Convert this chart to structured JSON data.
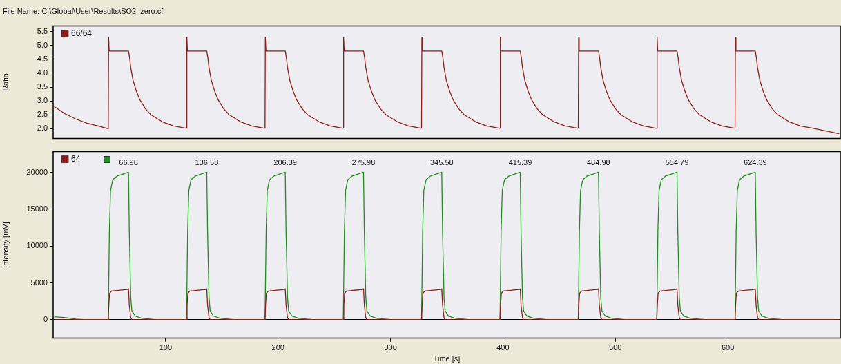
{
  "chart_data": [
    {
      "type": "line",
      "title": "File Name: C:\\Global\\User\\Results\\SO2_zero.cf",
      "ylabel": "Ratio",
      "legend": "top left",
      "marker": "none",
      "tick_labels": "y",
      "grid": false,
      "xlim": [
        0,
        700
      ],
      "ylim": [
        1.65,
        5.7
      ],
      "yticks": [
        {
          "value": 2,
          "label": "2.0"
        },
        {
          "value": 2.5,
          "label": "2.5"
        },
        {
          "value": 3,
          "label": "3.0"
        },
        {
          "value": 3.5,
          "label": "3.5"
        },
        {
          "value": 4,
          "label": "4.0"
        },
        {
          "value": 4.5,
          "label": "4.5"
        },
        {
          "value": 5,
          "label": "5.0"
        },
        {
          "value": 5.5,
          "label": "5.5"
        }
      ],
      "series": [
        {
          "name": "66/64",
          "color": "#8b1c1c",
          "x": [
            1,
            10,
            20,
            30,
            40,
            49,
            49.3,
            49.8,
            67,
            68,
            69,
            71,
            74,
            77,
            82,
            87,
            97,
            107,
            118,
            118.6,
            118.9,
            119.4,
            136.6,
            137.6,
            138.6,
            140.6,
            143.6,
            146.6,
            151.6,
            156.6,
            166.6,
            176.6,
            187.6,
            188.4,
            188.7,
            189.2,
            206.4,
            207.4,
            208.4,
            210.4,
            213.4,
            216.4,
            221.4,
            226.4,
            236.4,
            246.4,
            257.4,
            258,
            258.3,
            258.8,
            276,
            277,
            278,
            280,
            283,
            286,
            291,
            296,
            306,
            316,
            327,
            327.6,
            327.9,
            328.4,
            345.6,
            346.6,
            347.6,
            349.6,
            352.6,
            355.6,
            360.6,
            365.6,
            375.6,
            385.6,
            396.6,
            397.4,
            397.7,
            398.2,
            415.4,
            416.4,
            417.4,
            419.4,
            422.4,
            425.4,
            430.4,
            435.4,
            445.4,
            455.4,
            466.4,
            467,
            467.3,
            467.8,
            485,
            486,
            487,
            489,
            492,
            495,
            500,
            505,
            515,
            525,
            536,
            536.8,
            537.1,
            537.6,
            554.8,
            555.8,
            556.8,
            558.8,
            561.8,
            564.8,
            569.8,
            574.8,
            584.8,
            594.8,
            605.8,
            606.4,
            606.7,
            607.2,
            624.4,
            625.4,
            626.4,
            628.4,
            631.4,
            634.4,
            639.4,
            644.4,
            654.4,
            664.4,
            675.4,
            699
          ],
          "values": [
            2.8,
            2.55,
            2.35,
            2.2,
            2.1,
            2.0,
            5.3,
            4.8,
            4.8,
            4.55,
            4.2,
            3.75,
            3.35,
            3.05,
            2.72,
            2.5,
            2.25,
            2.1,
            2.02,
            2.02,
            5.3,
            4.8,
            4.8,
            4.55,
            4.2,
            3.75,
            3.35,
            3.05,
            2.72,
            2.5,
            2.25,
            2.1,
            2.02,
            2.02,
            5.3,
            4.8,
            4.8,
            4.55,
            4.2,
            3.75,
            3.35,
            3.05,
            2.72,
            2.5,
            2.25,
            2.1,
            2.02,
            2.02,
            5.3,
            4.8,
            4.8,
            4.55,
            4.2,
            3.75,
            3.35,
            3.05,
            2.72,
            2.5,
            2.25,
            2.1,
            2.02,
            2.02,
            5.3,
            4.8,
            4.8,
            4.55,
            4.2,
            3.75,
            3.35,
            3.05,
            2.72,
            2.5,
            2.25,
            2.1,
            2.02,
            2.02,
            5.3,
            4.8,
            4.8,
            4.55,
            4.2,
            3.75,
            3.35,
            3.05,
            2.72,
            2.5,
            2.25,
            2.1,
            2.02,
            2.02,
            5.3,
            4.8,
            4.8,
            4.55,
            4.2,
            3.75,
            3.35,
            3.05,
            2.72,
            2.5,
            2.25,
            2.1,
            2.02,
            2.02,
            5.3,
            4.8,
            4.8,
            4.55,
            4.2,
            3.75,
            3.35,
            3.05,
            2.72,
            2.5,
            2.25,
            2.1,
            2.02,
            2.02,
            5.3,
            4.8,
            4.8,
            4.55,
            4.2,
            3.75,
            3.35,
            3.05,
            2.72,
            2.5,
            2.25,
            2.1,
            2.02,
            1.82
          ]
        }
      ]
    },
    {
      "type": "line",
      "xlabel": "Time [s]",
      "ylabel": "Intensity [mV]",
      "legend": "top left",
      "marker": "none",
      "grid": false,
      "xlim": [
        0,
        700
      ],
      "ylim": [
        -2500,
        22800
      ],
      "xticks": [
        100,
        200,
        300,
        400,
        500,
        600
      ],
      "yticks": [
        0,
        5000,
        10000,
        15000,
        20000
      ],
      "ref_lines": [
        {
          "axis": "y",
          "value": 0,
          "color": "#000000"
        }
      ],
      "annotations": [
        {
          "text": "66.98",
          "x": 66.98,
          "y": 20000
        },
        {
          "text": "136.58",
          "x": 136.58,
          "y": 20000
        },
        {
          "text": "206.39",
          "x": 206.39,
          "y": 20000
        },
        {
          "text": "275.98",
          "x": 275.98,
          "y": 20000
        },
        {
          "text": "345.58",
          "x": 345.58,
          "y": 20000
        },
        {
          "text": "415.39",
          "x": 415.39,
          "y": 20000
        },
        {
          "text": "484.98",
          "x": 484.98,
          "y": 20000
        },
        {
          "text": "554.79",
          "x": 554.79,
          "y": 20000
        },
        {
          "text": "624.39",
          "x": 624.39,
          "y": 20000
        }
      ],
      "series": [
        {
          "name": "64",
          "color": "#8b1c1c",
          "x": [
            1,
            49,
            49.5,
            50.2,
            52,
            66,
            67,
            67.7,
            69,
            70,
            118.6,
            119.1,
            119.8,
            121.6,
            135.6,
            136.6,
            137.3,
            138.6,
            139.6,
            188.4,
            188.9,
            189.6,
            191.4,
            205.4,
            206.4,
            207.1,
            208.4,
            209.4,
            258,
            258.5,
            259.2,
            261,
            275,
            276,
            276.7,
            278,
            279,
            327.6,
            328.1,
            328.8,
            330.6,
            344.6,
            345.6,
            346.3,
            347.6,
            348.6,
            397.4,
            397.9,
            398.6,
            400.4,
            414.4,
            415.4,
            416.1,
            417.4,
            418.4,
            467,
            467.5,
            468.2,
            470,
            484,
            485,
            485.7,
            487,
            488,
            536.8,
            537.3,
            538,
            539.8,
            553.8,
            554.8,
            555.5,
            556.8,
            557.8,
            606.4,
            606.9,
            607.6,
            609.4,
            623.4,
            624.4,
            625.1,
            626.4,
            627.4,
            699
          ],
          "values": [
            0,
            0,
            2000,
            3600,
            3900,
            4100,
            4200,
            2000,
            300,
            0,
            0,
            2000,
            3600,
            3900,
            4100,
            4200,
            2000,
            300,
            0,
            0,
            2000,
            3600,
            3900,
            4100,
            4200,
            2000,
            300,
            0,
            0,
            2000,
            3600,
            3900,
            4100,
            4200,
            2000,
            300,
            0,
            0,
            2000,
            3600,
            3900,
            4100,
            4200,
            2000,
            300,
            0,
            0,
            2000,
            3600,
            3900,
            4100,
            4200,
            2000,
            300,
            0,
            0,
            2000,
            3600,
            3900,
            4100,
            4200,
            2000,
            300,
            0,
            0,
            2000,
            3600,
            3900,
            4100,
            4200,
            2000,
            300,
            0,
            0,
            2000,
            3600,
            3900,
            4100,
            4200,
            2000,
            300,
            0,
            0
          ]
        },
        {
          "color": "#1e8c1e",
          "x": [
            1,
            10,
            20,
            30,
            49,
            50,
            51,
            53,
            57,
            66.98,
            67.7,
            69,
            70,
            73,
            79,
            93,
            118.6,
            119.6,
            120.6,
            122.6,
            126.6,
            136.58,
            137.3,
            138.6,
            139.6,
            142.6,
            148.6,
            162.6,
            188.4,
            189.4,
            190.4,
            192.4,
            196.4,
            206.39,
            207.1,
            208.4,
            209.4,
            212.4,
            218.4,
            232.4,
            258,
            259,
            260,
            262,
            266,
            275.98,
            276.7,
            278,
            279,
            282,
            288,
            302,
            327.6,
            328.6,
            329.6,
            331.6,
            335.6,
            345.58,
            346.3,
            347.6,
            348.6,
            351.6,
            357.6,
            371.6,
            397.4,
            398.4,
            399.4,
            401.4,
            405.4,
            415.39,
            416.1,
            417.4,
            418.4,
            421.4,
            427.4,
            441.4,
            467,
            468,
            469,
            471,
            475,
            484.98,
            485.7,
            487,
            488,
            491,
            497,
            511,
            536.8,
            537.8,
            538.8,
            540.8,
            544.8,
            554.79,
            555.5,
            556.8,
            557.8,
            560.8,
            566.8,
            580.8,
            606.4,
            607.4,
            608.4,
            610.4,
            614.4,
            624.39,
            625.1,
            626.4,
            627.4,
            630.4,
            636.4,
            650.4,
            699
          ],
          "values": [
            400,
            300,
            100,
            0,
            0,
            12000,
            17500,
            19000,
            19500,
            20000,
            12000,
            3000,
            1200,
            500,
            200,
            0,
            0,
            12000,
            17500,
            19000,
            19500,
            20000,
            12000,
            3000,
            1200,
            500,
            200,
            0,
            0,
            12000,
            17500,
            19000,
            19500,
            20000,
            12000,
            3000,
            1200,
            500,
            200,
            0,
            0,
            12000,
            17500,
            19000,
            19500,
            20000,
            12000,
            3000,
            1200,
            500,
            200,
            0,
            0,
            12000,
            17500,
            19000,
            19500,
            20000,
            12000,
            3000,
            1200,
            500,
            200,
            0,
            0,
            12000,
            17500,
            19000,
            19500,
            20000,
            12000,
            3000,
            1200,
            500,
            200,
            0,
            0,
            12000,
            17500,
            19000,
            19500,
            20000,
            12000,
            3000,
            1200,
            500,
            200,
            0,
            0,
            12000,
            17500,
            19000,
            19500,
            20000,
            12000,
            3000,
            1200,
            500,
            200,
            0,
            0,
            12000,
            17500,
            19000,
            19500,
            20000,
            12000,
            3000,
            1200,
            500,
            200,
            0,
            0
          ]
        }
      ]
    }
  ]
}
